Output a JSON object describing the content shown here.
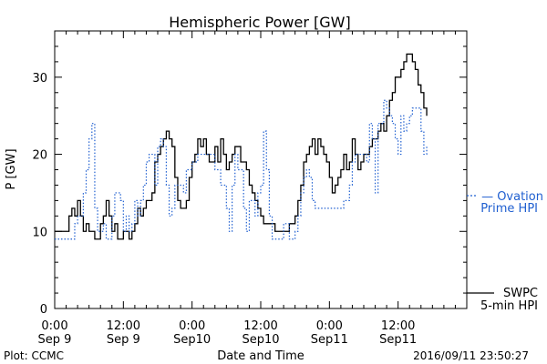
{
  "chart_data": {
    "type": "line",
    "title": "Hemispheric Power [GW]",
    "ylabel": "P [GW]",
    "xlabel": "Date and Time",
    "ylim": [
      0,
      36
    ],
    "xlim": [
      0,
      72
    ],
    "x_unit": "hours from 2016-09-09 00:00 UT",
    "yticks": [
      0,
      10,
      20,
      30
    ],
    "xticks": [
      {
        "x": 0,
        "line1": "0:00",
        "line2": "Sep 9"
      },
      {
        "x": 12,
        "line1": "12:00",
        "line2": "Sep 9"
      },
      {
        "x": 24,
        "line1": "0:00",
        "line2": "Sep10"
      },
      {
        "x": 36,
        "line1": "12:00",
        "line2": "Sep10"
      },
      {
        "x": 48,
        "line1": "0:00",
        "line2": "Sep11"
      },
      {
        "x": 60,
        "line1": "12:00",
        "line2": "Sep11"
      }
    ],
    "grid": false,
    "series": [
      {
        "name": "SWPC 5-min HPI",
        "label_lines": [
          "SWPC",
          "5-min HPI"
        ],
        "color": "#000000",
        "style": "solid-step",
        "points": [
          [
            0,
            10
          ],
          [
            2,
            10
          ],
          [
            2.5,
            12
          ],
          [
            3,
            13
          ],
          [
            3.5,
            12
          ],
          [
            4,
            14
          ],
          [
            4.5,
            12
          ],
          [
            5,
            10
          ],
          [
            5.5,
            11
          ],
          [
            6,
            10
          ],
          [
            7,
            9
          ],
          [
            8,
            11
          ],
          [
            8.5,
            12
          ],
          [
            9,
            14
          ],
          [
            9.5,
            12
          ],
          [
            10,
            10
          ],
          [
            10.5,
            11
          ],
          [
            11,
            9
          ],
          [
            12,
            10
          ],
          [
            13,
            9
          ],
          [
            13.5,
            10
          ],
          [
            14,
            11
          ],
          [
            14.5,
            13
          ],
          [
            15,
            12
          ],
          [
            15.5,
            13
          ],
          [
            16,
            14
          ],
          [
            17,
            15
          ],
          [
            17.5,
            19
          ],
          [
            18,
            20
          ],
          [
            18.5,
            21
          ],
          [
            19,
            22
          ],
          [
            19.5,
            23
          ],
          [
            20,
            22
          ],
          [
            20.5,
            21
          ],
          [
            21,
            17
          ],
          [
            21.5,
            14
          ],
          [
            22,
            13
          ],
          [
            22.5,
            13
          ],
          [
            23,
            14
          ],
          [
            23.5,
            17
          ],
          [
            24,
            19
          ],
          [
            24.5,
            20
          ],
          [
            25,
            22
          ],
          [
            25.5,
            21
          ],
          [
            26,
            22
          ],
          [
            26.5,
            20
          ],
          [
            27,
            19
          ],
          [
            27.5,
            19
          ],
          [
            28,
            21
          ],
          [
            28.5,
            19
          ],
          [
            29,
            22
          ],
          [
            29.5,
            20
          ],
          [
            30,
            18
          ],
          [
            30.5,
            19
          ],
          [
            31,
            20
          ],
          [
            31.5,
            21
          ],
          [
            32,
            21
          ],
          [
            32.5,
            19
          ],
          [
            33,
            19
          ],
          [
            33.5,
            18
          ],
          [
            34,
            16
          ],
          [
            34.5,
            15
          ],
          [
            35,
            14
          ],
          [
            35.5,
            13
          ],
          [
            36,
            12
          ],
          [
            36.5,
            11
          ],
          [
            37,
            11
          ],
          [
            37.5,
            11
          ],
          [
            38,
            11
          ],
          [
            38.5,
            10
          ],
          [
            39,
            10
          ],
          [
            40,
            10
          ],
          [
            41,
            11
          ],
          [
            42,
            12
          ],
          [
            42.5,
            14
          ],
          [
            43,
            16
          ],
          [
            43.5,
            19
          ],
          [
            44,
            20
          ],
          [
            44.5,
            21
          ],
          [
            45,
            22
          ],
          [
            45.5,
            20
          ],
          [
            46,
            22
          ],
          [
            46.5,
            21
          ],
          [
            47,
            20
          ],
          [
            47.5,
            19
          ],
          [
            48,
            17
          ],
          [
            48.5,
            15
          ],
          [
            49,
            16
          ],
          [
            49.5,
            17
          ],
          [
            50,
            18
          ],
          [
            50.5,
            20
          ],
          [
            51,
            18
          ],
          [
            51.5,
            19
          ],
          [
            52,
            22
          ],
          [
            52.5,
            20
          ],
          [
            53,
            18
          ],
          [
            53.5,
            19
          ],
          [
            54,
            20
          ],
          [
            54.5,
            20
          ],
          [
            55,
            21
          ],
          [
            55.5,
            22
          ],
          [
            56,
            22
          ],
          [
            56.5,
            23
          ],
          [
            57,
            24
          ],
          [
            57.5,
            23
          ],
          [
            58,
            25
          ],
          [
            58.5,
            27
          ],
          [
            59,
            28
          ],
          [
            59.5,
            30
          ],
          [
            60,
            30
          ],
          [
            60.5,
            31
          ],
          [
            61,
            32
          ],
          [
            61.5,
            33
          ],
          [
            62,
            33
          ],
          [
            62.5,
            32
          ],
          [
            63,
            31
          ],
          [
            63.5,
            29
          ],
          [
            64,
            28
          ],
          [
            64.5,
            26
          ],
          [
            65,
            25
          ]
        ]
      },
      {
        "name": "Ovation Prime HPI",
        "label_lines": [
          "— Ovation",
          "Prime HPI"
        ],
        "color": "#1f5fd0",
        "style": "dotted-step",
        "points": [
          [
            0,
            9
          ],
          [
            1,
            9
          ],
          [
            2,
            9
          ],
          [
            3,
            9
          ],
          [
            3.5,
            11
          ],
          [
            4,
            12
          ],
          [
            5,
            15
          ],
          [
            5.5,
            18
          ],
          [
            6,
            22
          ],
          [
            6.5,
            24
          ],
          [
            7,
            13
          ],
          [
            7.5,
            10
          ],
          [
            8,
            10
          ],
          [
            8.5,
            11
          ],
          [
            9,
            9
          ],
          [
            10,
            12
          ],
          [
            10.5,
            15
          ],
          [
            11,
            15
          ],
          [
            11.5,
            14
          ],
          [
            12,
            10
          ],
          [
            12.5,
            12
          ],
          [
            13,
            10
          ],
          [
            13.5,
            11
          ],
          [
            14,
            14
          ],
          [
            14.5,
            12
          ],
          [
            15,
            14
          ],
          [
            15.5,
            16
          ],
          [
            16,
            19
          ],
          [
            16.5,
            20
          ],
          [
            17,
            20
          ],
          [
            17.5,
            16
          ],
          [
            18,
            21
          ],
          [
            18.5,
            22
          ],
          [
            19,
            21
          ],
          [
            19.5,
            16
          ],
          [
            20,
            12
          ],
          [
            20.5,
            13
          ],
          [
            21,
            16
          ],
          [
            22,
            16
          ],
          [
            22.5,
            15
          ],
          [
            23,
            18
          ],
          [
            24,
            19
          ],
          [
            25,
            20
          ],
          [
            26,
            20
          ],
          [
            27,
            20
          ],
          [
            28,
            18
          ],
          [
            29,
            16
          ],
          [
            30,
            13
          ],
          [
            30.5,
            10
          ],
          [
            31,
            16
          ],
          [
            31.5,
            20
          ],
          [
            32,
            18
          ],
          [
            33,
            13
          ],
          [
            33.5,
            10
          ],
          [
            34,
            14
          ],
          [
            35,
            12
          ],
          [
            35.5,
            15
          ],
          [
            36,
            16
          ],
          [
            36.5,
            23
          ],
          [
            37,
            18
          ],
          [
            37.5,
            12
          ],
          [
            38,
            9
          ],
          [
            39,
            9
          ],
          [
            40,
            11
          ],
          [
            41,
            9
          ],
          [
            41.5,
            9
          ],
          [
            42,
            10
          ],
          [
            42.5,
            12
          ],
          [
            43,
            15
          ],
          [
            43.5,
            17
          ],
          [
            44,
            18
          ],
          [
            44.5,
            17
          ],
          [
            45,
            14
          ],
          [
            45.5,
            13
          ],
          [
            46,
            13
          ],
          [
            47,
            13
          ],
          [
            48,
            13
          ],
          [
            49,
            13
          ],
          [
            50,
            13
          ],
          [
            50.5,
            14
          ],
          [
            51,
            14
          ],
          [
            51.5,
            16
          ],
          [
            52,
            19
          ],
          [
            52.5,
            20
          ],
          [
            53,
            20
          ],
          [
            54,
            20
          ],
          [
            54.5,
            19
          ],
          [
            55,
            24
          ],
          [
            55.5,
            22
          ],
          [
            56,
            15
          ],
          [
            56.5,
            24
          ],
          [
            57,
            24
          ],
          [
            57.5,
            27
          ],
          [
            58,
            26
          ],
          [
            58.5,
            25
          ],
          [
            59,
            24
          ],
          [
            59.5,
            22
          ],
          [
            60,
            20
          ],
          [
            60.5,
            25
          ],
          [
            61,
            23
          ],
          [
            61.5,
            24
          ],
          [
            62,
            25
          ],
          [
            62.5,
            26
          ],
          [
            63,
            26
          ],
          [
            63.5,
            26
          ],
          [
            64,
            23
          ],
          [
            64.5,
            20
          ],
          [
            65,
            21
          ]
        ]
      }
    ]
  },
  "footer": {
    "source": "Plot: CCMC",
    "timestamp": "2016/09/11 23:50:27"
  }
}
